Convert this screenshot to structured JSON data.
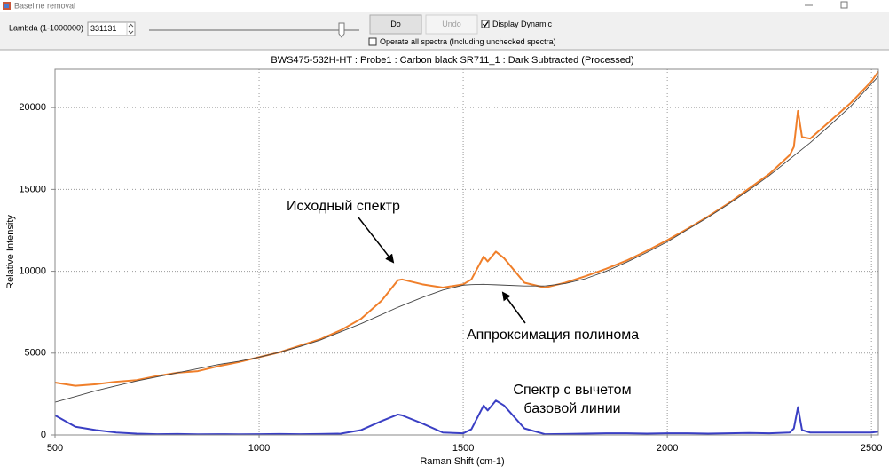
{
  "window": {
    "title": "Baseline removal"
  },
  "toolbar": {
    "lambda_label": "Lambda (1-1000000)",
    "lambda_value": "331131",
    "do_button": "Do",
    "undo_button": "Undo",
    "display_dynamic": {
      "label": "Display Dynamic",
      "checked": true
    },
    "operate_all": {
      "label": "Operate all spectra (Including unchecked spectra)",
      "checked": false
    }
  },
  "chart_data": {
    "type": "line",
    "title": "BWS475-532H-HT : Probe1 : Carbon black SR711_1 : Dark Subtracted (Processed)",
    "x_label": "Raman Shift (cm-1)",
    "y_label": "Relative Intensity",
    "x": [
      500,
      550,
      600,
      650,
      700,
      750,
      800,
      850,
      900,
      950,
      1000,
      1050,
      1100,
      1150,
      1200,
      1250,
      1300,
      1340,
      1350,
      1400,
      1450,
      1500,
      1520,
      1550,
      1560,
      1580,
      1600,
      1650,
      1700,
      1750,
      1800,
      1850,
      1900,
      1950,
      2000,
      2050,
      2100,
      2150,
      2200,
      2250,
      2300,
      2310,
      2320,
      2330,
      2350,
      2400,
      2450,
      2500,
      2517
    ],
    "series": [
      {
        "color": "#f07f2a",
        "line_width": 2,
        "values": [
          3200,
          3000,
          3100,
          3250,
          3350,
          3600,
          3800,
          3900,
          4200,
          4450,
          4750,
          5050,
          5450,
          5850,
          6400,
          7100,
          8200,
          9450,
          9500,
          9200,
          9000,
          9200,
          9500,
          10900,
          10600,
          11200,
          10800,
          9300,
          9000,
          9300,
          9700,
          10150,
          10650,
          11250,
          11900,
          12600,
          13350,
          14150,
          15050,
          15950,
          17100,
          17600,
          19800,
          18200,
          18100,
          19200,
          20300,
          21600,
          22200
        ]
      },
      {
        "color": "#444444",
        "line_width": 0.9,
        "values": [
          2000,
          2350,
          2700,
          3000,
          3300,
          3550,
          3800,
          4050,
          4300,
          4500,
          4750,
          5050,
          5400,
          5800,
          6300,
          6800,
          7350,
          7800,
          7900,
          8400,
          8850,
          9150,
          9180,
          9200,
          9190,
          9170,
          9150,
          9100,
          9100,
          9250,
          9550,
          10000,
          10550,
          11150,
          11800,
          12550,
          13300,
          14100,
          14950,
          15850,
          16850,
          17050,
          17250,
          17450,
          17850,
          18950,
          20100,
          21450,
          21900
        ]
      },
      {
        "color": "#3a3fc4",
        "line_width": 2,
        "values": [
          1200,
          500,
          300,
          150,
          80,
          50,
          60,
          40,
          50,
          40,
          50,
          60,
          50,
          60,
          80,
          300,
          850,
          1250,
          1200,
          700,
          150,
          100,
          350,
          1800,
          1500,
          2100,
          1800,
          400,
          50,
          60,
          80,
          100,
          100,
          80,
          100,
          100,
          80,
          100,
          120,
          100,
          150,
          400,
          1700,
          300,
          150,
          150,
          150,
          150,
          200
        ]
      }
    ],
    "xlim": [
      500,
      2517
    ],
    "ylim": [
      0,
      22340
    ],
    "xticks": [
      500,
      1000,
      1500,
      2000,
      2500
    ],
    "yticks": [
      0,
      5000,
      10000,
      15000,
      20000
    ],
    "grid": true,
    "annotations": [
      {
        "lines": [
          "Исходный спектр"
        ]
      },
      {
        "lines": [
          "Аппроксимация полинома"
        ]
      },
      {
        "lines": [
          "Спектр с вычетом",
          "базовой линии"
        ]
      }
    ]
  }
}
